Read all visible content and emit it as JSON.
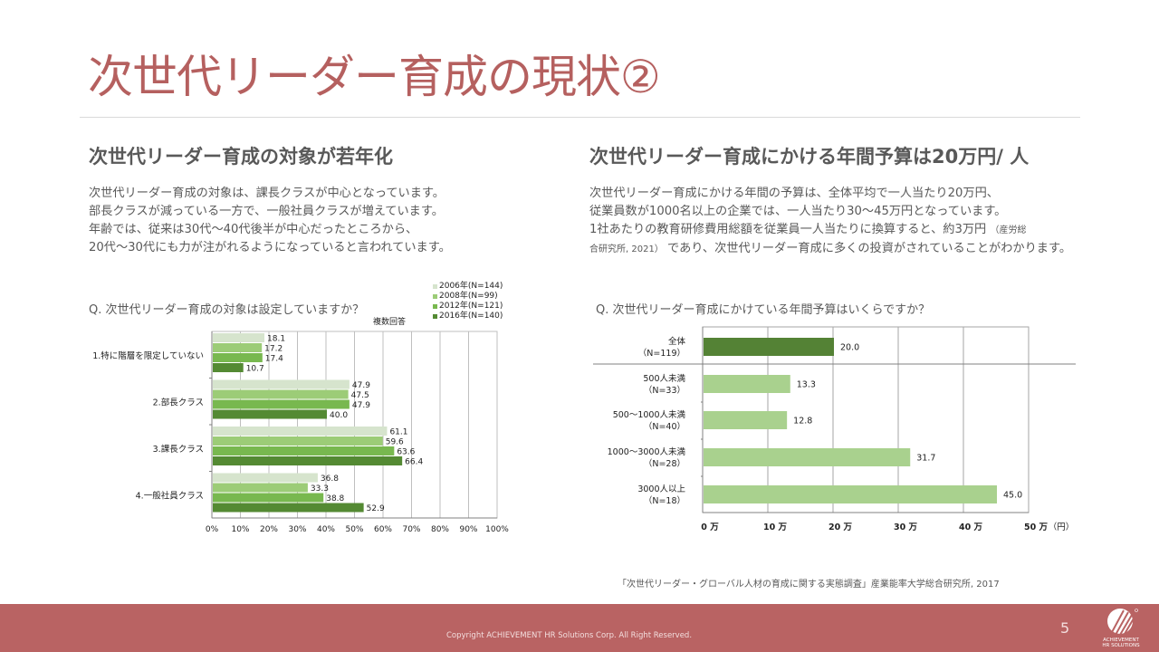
{
  "page": {
    "title": "次世代リーダー育成の現状②",
    "page_number": "5",
    "copyright": "Copyright ACHIEVEMENT HR Solutions Corp. All Right Reserved.",
    "logo_text": [
      "ACHIEVEMENT",
      "HR SOLUTIONS"
    ],
    "source": "「次世代リーダー・グローバル人材の育成に関する実態調査」産業能率大学総合研究所, 2017"
  },
  "left": {
    "heading": "次世代リーダー育成の対象が若年化",
    "body": [
      "次世代リーダー育成の対象は、課長クラスが中心となっています。",
      "部長クラスが減っている一方で、一般社員クラスが増えています。",
      "年齢では、従来は30代～40代後半が中心だったところから、",
      "20代～30代にも力が注がれるようになっていると言われています。"
    ],
    "question": "Q. 次世代リーダー育成の対象は設定していますか？",
    "note": "複数回答"
  },
  "right": {
    "heading": "次世代リーダー育成にかける年間予算は20万円/ 人",
    "body": [
      "次世代リーダー育成にかける年間の予算は、全体平均で一人当たり20万円、",
      "従業員数が1000名以上の企業では、一人当たり30～45万円となっています。",
      "1社あたりの教育研修費用総額を従業員一人当たりに換算すると、約3万円",
      "（産労総",
      "合研究所, 2021）",
      "であり、次世代リーダー育成に多くの投資がされていることがわかります。"
    ],
    "question": "Q. 次世代リーダー育成にかけている年間予算はいくらですか？"
  },
  "colors": {
    "title": "#b5605f",
    "footer": "#b96363",
    "s2006": "#d6e4cd",
    "s2008": "#9ccc77",
    "s2012": "#78b84f",
    "s2016": "#548a33",
    "total": "#548235",
    "segment": "#a9d18e"
  },
  "chart_data": [
    {
      "type": "bar",
      "orientation": "horizontal",
      "title": "Q. 次世代リーダー育成の対象は設定していますか？",
      "note": "複数回答",
      "categories": [
        "1.特に階層を限定していない",
        "2.部長クラス",
        "3.課長クラス",
        "4.一般社員クラス"
      ],
      "series": [
        {
          "name": "2006年(N=144)",
          "labels": [
            "18.1",
            "47.9",
            "61.1",
            "36.8"
          ],
          "values": [
            18.1,
            47.9,
            61.1,
            36.8
          ]
        },
        {
          "name": "2008年(N=99)",
          "labels": [
            "17.2",
            "47.5",
            "59.6",
            "33.3"
          ],
          "values": [
            17.2,
            47.5,
            59.6,
            33.3
          ]
        },
        {
          "name": "2012年(N=121)",
          "labels": [
            "17.4",
            "47.9",
            "63.6",
            "38.8"
          ],
          "values": [
            17.4,
            47.9,
            63.6,
            38.8
          ]
        },
        {
          "name": "2016年(N=140)",
          "labels": [
            "10.7",
            "40.0",
            "66.4",
            "52.9"
          ],
          "values": [
            10.7,
            40.0,
            66.4,
            52.9
          ]
        }
      ],
      "xlim": [
        0,
        100
      ],
      "xticks": [
        "0%",
        "10%",
        "20%",
        "30%",
        "40%",
        "50%",
        "60%",
        "70%",
        "80%",
        "90%",
        "100%"
      ],
      "legend": "top-right",
      "grid": true
    },
    {
      "type": "bar",
      "orientation": "horizontal",
      "title": "Q. 次世代リーダー育成にかけている年間予算はいくらですか？",
      "categories": [
        {
          "name": "全体",
          "n": "（N=119）"
        },
        {
          "name": "500人未満",
          "n": "（N=33）"
        },
        {
          "name": "500～1000人未満",
          "n": "（N=40）"
        },
        {
          "name": "1000～3000人未満",
          "n": "（N=28）"
        },
        {
          "name": "3000人以上",
          "n": "（N=18）"
        }
      ],
      "values": [
        20.0,
        13.3,
        12.8,
        31.7,
        45.0
      ],
      "labels": [
        "20.0",
        "13.3",
        "12.8",
        "31.7",
        "45.0"
      ],
      "xlim": [
        0,
        50
      ],
      "xticks": [
        "0 万",
        "10 万",
        "20 万",
        "30 万",
        "40 万",
        "50 万"
      ],
      "xunit": "（円）",
      "grid": true
    }
  ]
}
